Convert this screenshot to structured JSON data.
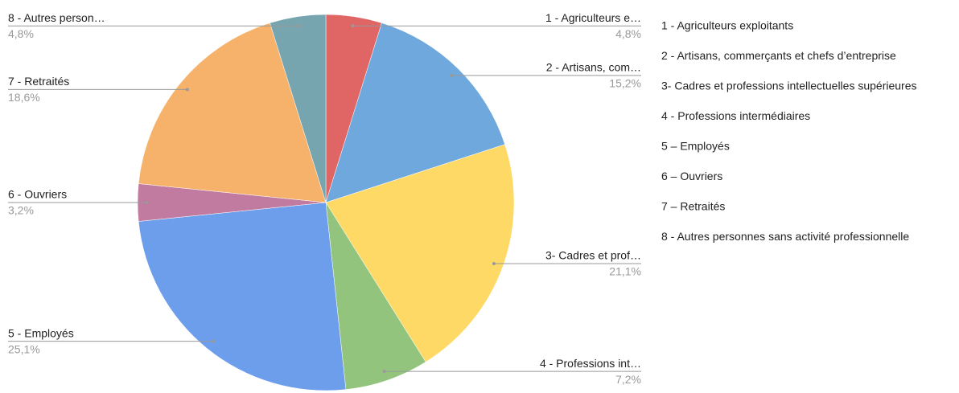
{
  "chart_data": {
    "type": "pie",
    "categories": [
      "1 - Agriculteurs exploitants",
      "2 - Artisans, commerçants et chefs d’entreprise",
      "3- Cadres et professions intellectuelles supérieures",
      "4 - Professions intermédiaires",
      "5 – Employés",
      "6 – Ouvriers",
      "7 – Retraités",
      "8 - Autres personnes sans activité professionnelle"
    ],
    "slice_labels": [
      "1 - Agriculteurs e…",
      "2 - Artisans, com…",
      "3- Cadres et prof…",
      "4 - Professions int…",
      "5 - Employés",
      "6 - Ouvriers",
      "7 - Retraités",
      "8 - Autres person…"
    ],
    "values": [
      4.8,
      15.2,
      21.1,
      7.2,
      25.1,
      3.2,
      18.6,
      4.8
    ],
    "value_labels": [
      "4,8%",
      "15,2%",
      "21,1%",
      "7,2%",
      "25,1%",
      "3,2%",
      "18,6%",
      "4,8%"
    ],
    "colors": [
      "#e06666",
      "#6fa8dc",
      "#ffd966",
      "#93c47d",
      "#6d9eeb",
      "#c27ba0",
      "#f6b26b",
      "#76a5af"
    ],
    "legend": "right"
  }
}
